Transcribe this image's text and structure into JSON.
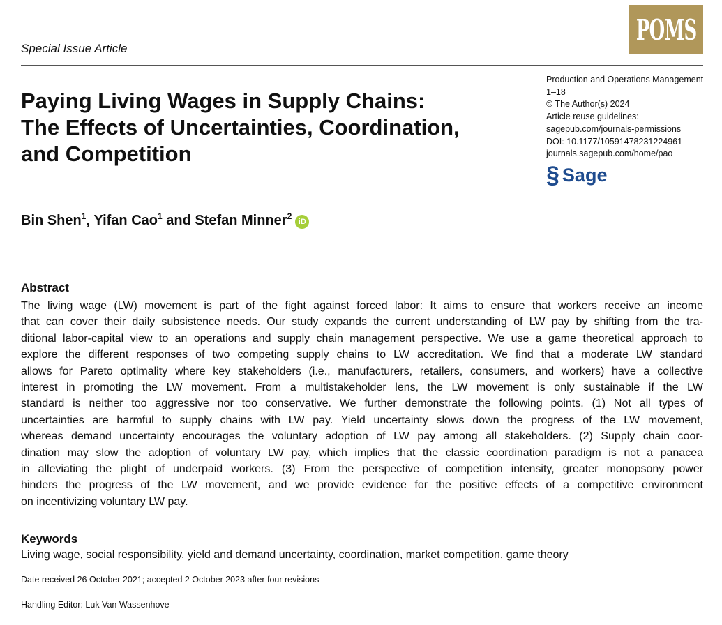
{
  "header": {
    "article_type": "Special Issue Article",
    "journal_logo": "POMS",
    "logo_color": "#b0975a"
  },
  "meta": {
    "lines": [
      "Production and Operations Management",
      "1–18",
      "© The Author(s) 2024",
      "Article reuse guidelines:",
      "sagepub.com/journals-permissions",
      "DOI: 10.1177/10591478231224961",
      "journals.sagepub.com/home/pao"
    ],
    "publisher": "Sage",
    "publisher_color": "#1e4b8e"
  },
  "title": {
    "lines": [
      "Paying Living Wages in Supply Chains:",
      "The Effects of Uncertainties, Coordination,",
      "and Competition"
    ]
  },
  "authors": [
    {
      "name": "Bin Shen",
      "aff": "1",
      "sep": ", "
    },
    {
      "name": "Yifan Cao",
      "aff": "1",
      "sep": " and "
    },
    {
      "name": "Stefan Minner",
      "aff": "2",
      "sep": ""
    }
  ],
  "orcid_icon": "iD",
  "abstract": {
    "heading": "Abstract",
    "lines": [
      "The living wage (LW) movement is part of the fight against forced labor: It aims to ensure that workers receive an income",
      "that can cover their daily subsistence needs. Our study expands the current understanding of LW pay by shifting from the tra-",
      "ditional labor-capital view to an operations and supply chain management perspective. We use a game theoretical approach to",
      "explore the different responses of two competing supply chains to LW accreditation. We find that a moderate LW standard",
      "allows for Pareto optimality where key stakeholders (i.e., manufacturers, retailers, consumers, and workers) have a collective",
      "interest in promoting the LW movement. From a multistakeholder lens, the LW movement is only sustainable if the LW",
      "standard is neither too aggressive nor too conservative. We further demonstrate the following points. (1) Not all types of",
      "uncertainties are harmful to supply chains with LW pay. Yield uncertainty slows down the progress of the LW movement,",
      "whereas demand uncertainty encourages the voluntary adoption of LW pay among all stakeholders. (2) Supply chain coor-",
      "dination may slow the adoption of voluntary LW pay, which implies that the classic coordination paradigm is not a panacea",
      "in alleviating the plight of underpaid workers. (3) From the perspective of competition intensity, greater monopsony power",
      "hinders the progress of the LW movement, and we provide evidence for the positive effects of a competitive environment",
      "on incentivizing voluntary LW pay."
    ]
  },
  "keywords": {
    "heading": "Keywords",
    "text": "Living wage, social responsibility, yield and demand uncertainty, coordination, market competition, game theory"
  },
  "dates": "Date received 26 October 2021; accepted 2 October 2023 after four revisions",
  "handling_editor": "Handling Editor: Luk Van Wassenhove"
}
